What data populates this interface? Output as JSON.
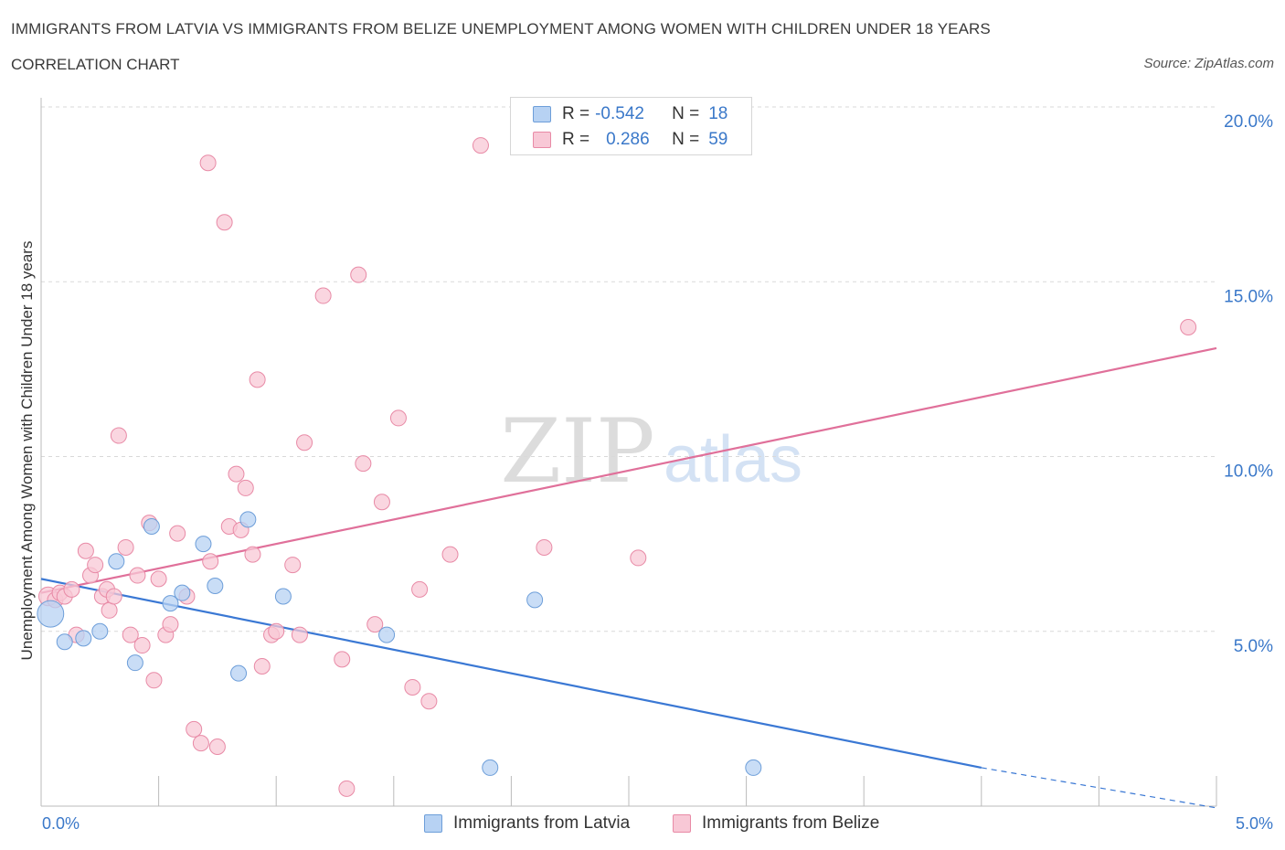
{
  "title": "IMMIGRANTS FROM LATVIA VS IMMIGRANTS FROM BELIZE UNEMPLOYMENT AMONG WOMEN WITH CHILDREN UNDER 18 YEARS",
  "subtitle": "CORRELATION CHART",
  "source": "Source: ZipAtlas.com",
  "watermark": {
    "zip": "ZIP",
    "atlas": "atlas"
  },
  "legend": {
    "latvia": {
      "r_label": "R =",
      "r_value": "-0.542",
      "n_label": "N =",
      "n_value": "18"
    },
    "belize": {
      "r_label": "R =",
      "r_value": "0.286",
      "n_label": "N =",
      "n_value": "59"
    }
  },
  "bottom_legend": {
    "latvia": "Immigrants from Latvia",
    "belize": "Immigrants from Belize"
  },
  "colors": {
    "latvia_fill": "#b7d2f3",
    "latvia_stroke": "#6d9ed9",
    "latvia_line": "#3a78d4",
    "belize_fill": "#f8c8d6",
    "belize_stroke": "#e88aa6",
    "belize_line": "#e0709a",
    "grid": "#d9d9d9",
    "axis_text": "#3a78c9"
  },
  "chart_data": {
    "type": "scatter",
    "title": "IMMIGRANTS FROM LATVIA VS IMMIGRANTS FROM BELIZE UNEMPLOYMENT AMONG WOMEN WITH CHILDREN UNDER 18 YEARS",
    "xlabel": "",
    "ylabel": "Unemployment Among Women with Children Under 18 years",
    "xlim": [
      0,
      5
    ],
    "ylim": [
      0,
      20
    ],
    "x_tick_labels": [
      "0.0%",
      "5.0%"
    ],
    "y_ticks": [
      5,
      10,
      15,
      20
    ],
    "y_tick_labels": [
      "5.0%",
      "10.0%",
      "15.0%",
      "20.0%"
    ],
    "grid": true,
    "series": [
      {
        "name": "Immigrants from Latvia",
        "r": -0.542,
        "n": 18,
        "points": [
          [
            0.04,
            5.5,
            1.7
          ],
          [
            0.1,
            4.7,
            1
          ],
          [
            0.18,
            4.8,
            1
          ],
          [
            0.25,
            5.0,
            1
          ],
          [
            0.32,
            7.0,
            1
          ],
          [
            0.4,
            4.1,
            1
          ],
          [
            0.47,
            8.0,
            1
          ],
          [
            0.55,
            5.8,
            1
          ],
          [
            0.6,
            6.1,
            1
          ],
          [
            0.69,
            7.5,
            1
          ],
          [
            0.74,
            6.3,
            1
          ],
          [
            0.84,
            3.8,
            1
          ],
          [
            0.88,
            8.2,
            1
          ],
          [
            1.03,
            6.0,
            1
          ],
          [
            1.47,
            4.9,
            1
          ],
          [
            1.91,
            1.1,
            1
          ],
          [
            2.1,
            5.9,
            1
          ],
          [
            3.03,
            1.1,
            1
          ]
        ],
        "trend": {
          "x0": 0,
          "y0": 6.5,
          "x1": 4.0,
          "y1": 1.1,
          "dash_to_x": 5.0,
          "dash_to_y": -0.05
        }
      },
      {
        "name": "Immigrants from Belize",
        "r": 0.286,
        "n": 59,
        "points": [
          [
            0.03,
            6.0,
            1.2
          ],
          [
            0.06,
            5.9,
            1
          ],
          [
            0.08,
            6.1,
            1
          ],
          [
            0.1,
            6.0,
            1
          ],
          [
            0.13,
            6.2,
            1
          ],
          [
            0.15,
            4.9,
            1
          ],
          [
            0.19,
            7.3,
            1
          ],
          [
            0.21,
            6.6,
            1
          ],
          [
            0.23,
            6.9,
            1
          ],
          [
            0.26,
            6.0,
            1
          ],
          [
            0.28,
            6.2,
            1
          ],
          [
            0.29,
            5.6,
            1
          ],
          [
            0.31,
            6.0,
            1
          ],
          [
            0.33,
            10.6,
            1
          ],
          [
            0.36,
            7.4,
            1
          ],
          [
            0.38,
            4.9,
            1
          ],
          [
            0.41,
            6.6,
            1
          ],
          [
            0.43,
            4.6,
            1
          ],
          [
            0.46,
            8.1,
            1
          ],
          [
            0.48,
            3.6,
            1
          ],
          [
            0.5,
            6.5,
            1
          ],
          [
            0.53,
            4.9,
            1
          ],
          [
            0.55,
            5.2,
            1
          ],
          [
            0.58,
            7.8,
            1
          ],
          [
            0.62,
            6.0,
            1
          ],
          [
            0.65,
            2.2,
            1
          ],
          [
            0.68,
            1.8,
            1
          ],
          [
            0.71,
            18.4,
            1
          ],
          [
            0.72,
            7.0,
            1
          ],
          [
            0.75,
            1.7,
            1
          ],
          [
            0.78,
            16.7,
            1
          ],
          [
            0.8,
            8.0,
            1
          ],
          [
            0.83,
            9.5,
            1
          ],
          [
            0.85,
            7.9,
            1
          ],
          [
            0.87,
            9.1,
            1
          ],
          [
            0.9,
            7.2,
            1
          ],
          [
            0.92,
            12.2,
            1
          ],
          [
            0.94,
            4.0,
            1
          ],
          [
            0.98,
            4.9,
            1
          ],
          [
            1.0,
            5.0,
            1
          ],
          [
            1.07,
            6.9,
            1
          ],
          [
            1.1,
            4.9,
            1
          ],
          [
            1.12,
            10.4,
            1
          ],
          [
            1.2,
            14.6,
            1
          ],
          [
            1.28,
            4.2,
            1
          ],
          [
            1.3,
            0.5,
            1
          ],
          [
            1.35,
            15.2,
            1
          ],
          [
            1.37,
            9.8,
            1
          ],
          [
            1.42,
            5.2,
            1
          ],
          [
            1.45,
            8.7,
            1
          ],
          [
            1.52,
            11.1,
            1
          ],
          [
            1.58,
            3.4,
            1
          ],
          [
            1.61,
            6.2,
            1
          ],
          [
            1.65,
            3.0,
            1
          ],
          [
            1.74,
            7.2,
            1
          ],
          [
            1.87,
            18.9,
            1
          ],
          [
            2.14,
            7.4,
            1
          ],
          [
            2.54,
            7.1,
            1
          ],
          [
            4.88,
            13.7,
            1
          ]
        ],
        "trend": {
          "x0": 0,
          "y0": 6.1,
          "x1": 5.0,
          "y1": 13.1
        }
      }
    ]
  }
}
